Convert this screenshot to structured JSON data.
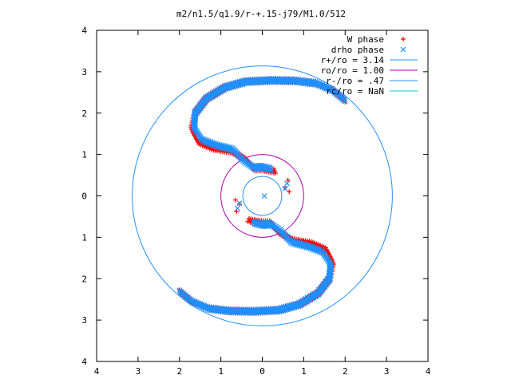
{
  "chart_data": {
    "type": "scatter",
    "title": "m2/n1.5/q1.9/r-+.15-j79/M1.0/512",
    "xlim": [
      -4,
      4
    ],
    "ylim": [
      -4,
      4
    ],
    "x_tick_labels": [
      "4",
      "3",
      "2",
      "1",
      "0",
      "1",
      "2",
      "3",
      "4"
    ],
    "y_tick_labels": [
      "4",
      "3",
      "2",
      "1",
      "0",
      "1",
      "2",
      "3",
      "4"
    ],
    "x_tick_values": [
      -4,
      -3,
      -2,
      -1,
      0,
      1,
      2,
      3,
      4
    ],
    "y_tick_values": [
      -4,
      -3,
      -2,
      -1,
      0,
      1,
      2,
      3,
      4
    ],
    "grid": false,
    "legend_position": "top-right",
    "series": [
      {
        "name": "W phase",
        "marker": "+",
        "color": "#ff0000",
        "arms": [
          {
            "sign": 1,
            "points": [
              [
                1.98,
                2.32
              ],
              [
                1.7,
                2.55
              ],
              [
                1.3,
                2.72
              ],
              [
                0.8,
                2.78
              ],
              [
                0.2,
                2.79
              ],
              [
                -0.4,
                2.76
              ],
              [
                -0.9,
                2.62
              ],
              [
                -1.35,
                2.35
              ],
              [
                -1.62,
                2.0
              ],
              [
                -1.7,
                1.6
              ],
              [
                -1.55,
                1.3
              ],
              [
                -1.2,
                1.15
              ],
              [
                -0.75,
                1.08
              ],
              [
                -0.4,
                0.88
              ],
              [
                -0.2,
                0.65
              ],
              [
                0.0,
                0.65
              ],
              [
                0.3,
                0.6
              ]
            ]
          },
          {
            "sign": -1,
            "points": [
              [
                1.98,
                2.32
              ],
              [
                1.7,
                2.55
              ],
              [
                1.3,
                2.72
              ],
              [
                0.8,
                2.78
              ],
              [
                0.2,
                2.79
              ],
              [
                -0.4,
                2.76
              ],
              [
                -0.9,
                2.62
              ],
              [
                -1.35,
                2.35
              ],
              [
                -1.62,
                2.0
              ],
              [
                -1.7,
                1.6
              ],
              [
                -1.55,
                1.3
              ],
              [
                -1.2,
                1.15
              ],
              [
                -0.75,
                1.08
              ],
              [
                -0.4,
                0.88
              ],
              [
                -0.2,
                0.65
              ],
              [
                0.0,
                0.65
              ],
              [
                0.3,
                0.6
              ]
            ]
          }
        ],
        "scattered_points": [
          [
            0.62,
            0.38
          ],
          [
            0.55,
            0.2
          ],
          [
            0.65,
            0.1
          ],
          [
            -0.62,
            -0.38
          ],
          [
            -0.55,
            -0.2
          ],
          [
            -0.65,
            -0.1
          ],
          [
            -0.35,
            -0.62
          ]
        ]
      },
      {
        "name": "drho phase",
        "marker": "x",
        "color": "#1e90ff",
        "arms": [
          {
            "sign": 1,
            "points": [
              [
                1.98,
                2.32
              ],
              [
                1.7,
                2.55
              ],
              [
                1.3,
                2.72
              ],
              [
                0.8,
                2.78
              ],
              [
                0.2,
                2.79
              ],
              [
                -0.4,
                2.76
              ],
              [
                -0.9,
                2.62
              ],
              [
                -1.35,
                2.35
              ],
              [
                -1.62,
                2.0
              ],
              [
                -1.65,
                1.65
              ],
              [
                -1.45,
                1.35
              ],
              [
                -1.1,
                1.22
              ],
              [
                -0.7,
                1.12
              ],
              [
                -0.45,
                0.85
              ],
              [
                -0.2,
                0.68
              ],
              [
                0.0,
                0.7
              ],
              [
                0.2,
                0.65
              ]
            ]
          },
          {
            "sign": -1,
            "points": [
              [
                1.98,
                2.32
              ],
              [
                1.7,
                2.55
              ],
              [
                1.3,
                2.72
              ],
              [
                0.8,
                2.78
              ],
              [
                0.2,
                2.79
              ],
              [
                -0.4,
                2.76
              ],
              [
                -0.9,
                2.62
              ],
              [
                -1.35,
                2.35
              ],
              [
                -1.62,
                2.0
              ],
              [
                -1.65,
                1.65
              ],
              [
                -1.45,
                1.35
              ],
              [
                -1.1,
                1.22
              ],
              [
                -0.7,
                1.12
              ],
              [
                -0.45,
                0.85
              ],
              [
                -0.2,
                0.68
              ],
              [
                0.0,
                0.7
              ],
              [
                0.2,
                0.65
              ]
            ]
          }
        ],
        "scattered_points": [
          [
            0.6,
            0.3
          ],
          [
            0.55,
            0.18
          ],
          [
            -0.6,
            -0.3
          ],
          [
            -0.55,
            -0.18
          ],
          [
            0.05,
            0.0
          ]
        ]
      }
    ],
    "reference_lines": [
      {
        "name": "r+/ro = 3.14",
        "radius": 3.14,
        "color": "#1e90ff"
      },
      {
        "name": "ro/ro = 1.00",
        "radius": 1.0,
        "color": "#b000b0"
      },
      {
        "name": "r-/ro = .47",
        "radius": 0.47,
        "color": "#1e90ff"
      },
      {
        "name": "rc/ro = NaN",
        "radius": null,
        "color": "#00cccc"
      }
    ]
  }
}
